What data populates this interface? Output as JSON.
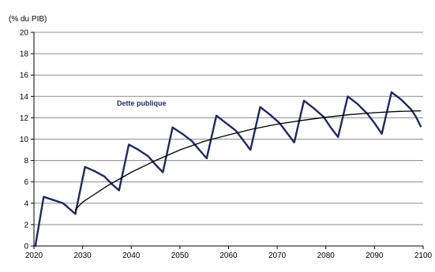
{
  "chart_data": {
    "type": "line",
    "ylabel": "(% du PIB)",
    "annotation": "Dette publique",
    "xlim": [
      2020,
      2100
    ],
    "ylim": [
      0,
      20
    ],
    "x_ticks": [
      "2020",
      "2030",
      "2040",
      "2050",
      "2060",
      "2070",
      "2080",
      "2090",
      "2100"
    ],
    "y_ticks": [
      "0",
      "2",
      "4",
      "6",
      "8",
      "10",
      "12",
      "14",
      "16",
      "18",
      "20"
    ],
    "grid": true,
    "series": [
      {
        "color": "#1f2a5c",
        "points": [
          [
            2020.3,
            0.0
          ],
          [
            2022,
            4.6
          ],
          [
            2024,
            4.3
          ],
          [
            2026,
            4.0
          ],
          [
            2027.5,
            3.4
          ],
          [
            2028.5,
            3.0
          ],
          [
            2030.5,
            7.4
          ],
          [
            2032.5,
            7.0
          ],
          [
            2034.5,
            6.5
          ],
          [
            2036,
            5.8
          ],
          [
            2037.5,
            5.2
          ],
          [
            2039.5,
            9.5
          ],
          [
            2041.5,
            9.0
          ],
          [
            2043.5,
            8.4
          ],
          [
            2045,
            7.6
          ],
          [
            2046.5,
            6.9
          ],
          [
            2048.5,
            11.1
          ],
          [
            2050.5,
            10.5
          ],
          [
            2052.5,
            9.8
          ],
          [
            2054,
            9.0
          ],
          [
            2055.5,
            8.2
          ],
          [
            2057.5,
            12.2
          ],
          [
            2059.5,
            11.5
          ],
          [
            2061.5,
            10.8
          ],
          [
            2063,
            9.9
          ],
          [
            2064.5,
            9.0
          ],
          [
            2066.5,
            13.0
          ],
          [
            2068.5,
            12.3
          ],
          [
            2070.5,
            11.5
          ],
          [
            2072,
            10.6
          ],
          [
            2073.5,
            9.7
          ],
          [
            2075.5,
            13.6
          ],
          [
            2077.5,
            12.9
          ],
          [
            2079.5,
            12.1
          ],
          [
            2081,
            11.1
          ],
          [
            2082.5,
            10.2
          ],
          [
            2084.5,
            14.0
          ],
          [
            2086.5,
            13.3
          ],
          [
            2088.5,
            12.4
          ],
          [
            2090,
            11.5
          ],
          [
            2091.5,
            10.5
          ],
          [
            2093.5,
            14.4
          ],
          [
            2095.5,
            13.7
          ],
          [
            2097.5,
            12.8
          ],
          [
            2098.5,
            12.1
          ],
          [
            2099.5,
            11.2
          ]
        ]
      },
      {
        "color": "#000000",
        "points": [
          [
            2028.5,
            3.4
          ],
          [
            2030,
            4.1
          ],
          [
            2035,
            5.6
          ],
          [
            2040,
            6.9
          ],
          [
            2045,
            8.0
          ],
          [
            2050,
            9.0
          ],
          [
            2055,
            9.8
          ],
          [
            2060,
            10.4
          ],
          [
            2065,
            10.95
          ],
          [
            2070,
            11.4
          ],
          [
            2075,
            11.75
          ],
          [
            2080,
            12.05
          ],
          [
            2085,
            12.3
          ],
          [
            2090,
            12.48
          ],
          [
            2095,
            12.6
          ],
          [
            2099.5,
            12.65
          ]
        ]
      }
    ]
  }
}
